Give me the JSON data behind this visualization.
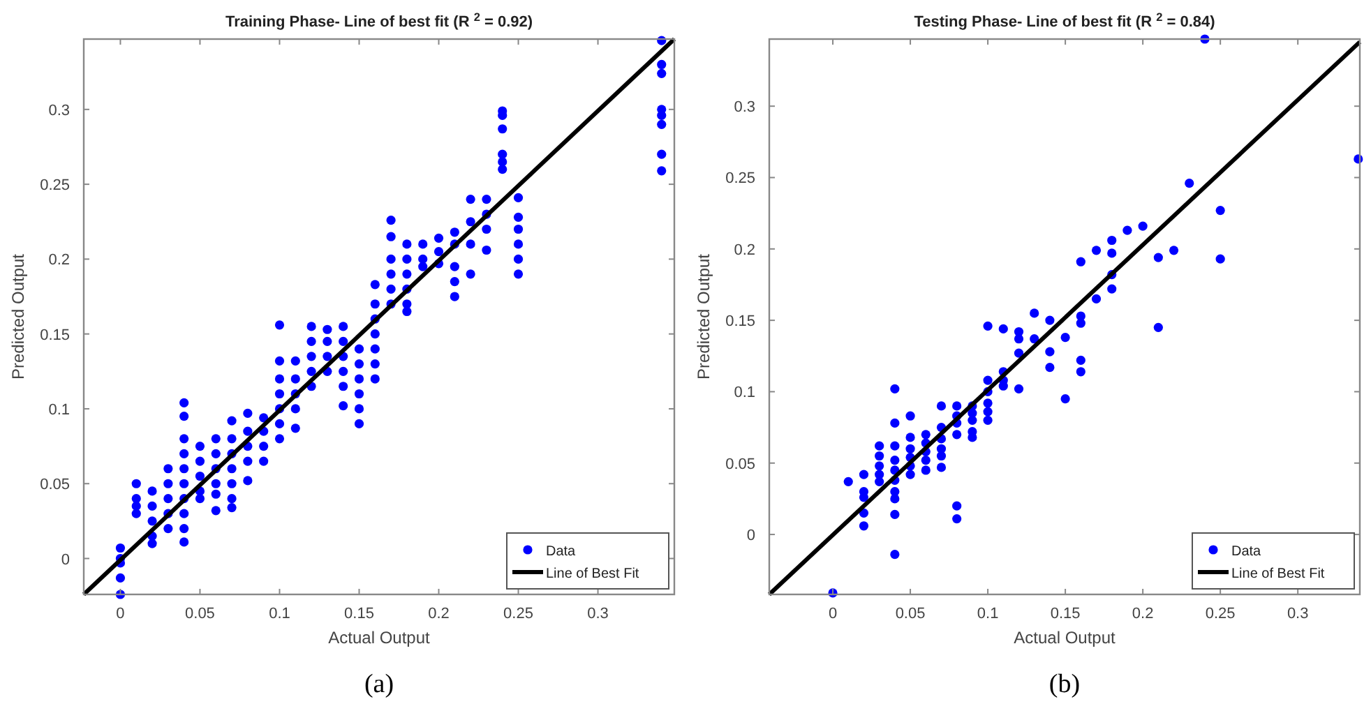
{
  "chart_data": [
    {
      "type": "scatter",
      "title": "Training Phase- Line of best fit (R $^{2}$ = 0.92)",
      "xlabel": "Actual Output",
      "ylabel": "Predicted Output",
      "annotations": [
        "(a)"
      ],
      "xlim": [
        -0.023,
        0.348
      ],
      "ylim": [
        -0.024,
        0.347
      ],
      "xticks": [
        0,
        0.05,
        0.1,
        0.15,
        0.2,
        0.25,
        0.3
      ],
      "yticks": [
        0,
        0.05,
        0.1,
        0.15,
        0.2,
        0.25,
        0.3
      ],
      "grid": false,
      "legend": "bottom right",
      "series": [
        {
          "name": "Data",
          "marker": "circle",
          "color": "#0000ff",
          "x": [
            0,
            0,
            0,
            0,
            0,
            0.01,
            0.01,
            0.01,
            0.01,
            0.02,
            0.02,
            0.02,
            0.02,
            0.02,
            0.03,
            0.03,
            0.03,
            0.03,
            0.03,
            0.04,
            0.04,
            0.04,
            0.04,
            0.04,
            0.04,
            0.04,
            0.04,
            0.04,
            0.04,
            0.05,
            0.05,
            0.05,
            0.05,
            0.05,
            0.06,
            0.06,
            0.06,
            0.06,
            0.06,
            0.06,
            0.07,
            0.07,
            0.07,
            0.07,
            0.07,
            0.07,
            0.07,
            0.08,
            0.08,
            0.08,
            0.08,
            0.08,
            0.09,
            0.09,
            0.09,
            0.09,
            0.1,
            0.1,
            0.1,
            0.1,
            0.1,
            0.1,
            0.1,
            0.11,
            0.11,
            0.11,
            0.11,
            0.11,
            0.12,
            0.12,
            0.12,
            0.12,
            0.12,
            0.13,
            0.13,
            0.13,
            0.13,
            0.14,
            0.14,
            0.14,
            0.14,
            0.14,
            0.14,
            0.15,
            0.15,
            0.15,
            0.15,
            0.15,
            0.15,
            0.16,
            0.16,
            0.16,
            0.16,
            0.16,
            0.16,
            0.16,
            0.17,
            0.17,
            0.17,
            0.17,
            0.17,
            0.17,
            0.18,
            0.18,
            0.18,
            0.18,
            0.18,
            0.18,
            0.19,
            0.19,
            0.19,
            0.2,
            0.2,
            0.2,
            0.21,
            0.21,
            0.21,
            0.21,
            0.21,
            0.22,
            0.22,
            0.22,
            0.22,
            0.23,
            0.23,
            0.23,
            0.23,
            0.24,
            0.24,
            0.24,
            0.24,
            0.24,
            0.24,
            0.25,
            0.25,
            0.25,
            0.25,
            0.25,
            0.25,
            0.34,
            0.34,
            0.34,
            0.34,
            0.34,
            0.34,
            0.34,
            0.34
          ],
          "values": [
            0.007,
            0,
            -0.003,
            -0.013,
            -0.024,
            0.05,
            0.04,
            0.035,
            0.03,
            0.045,
            0.035,
            0.025,
            0.015,
            0.01,
            0.06,
            0.05,
            0.04,
            0.03,
            0.02,
            0.104,
            0.095,
            0.08,
            0.07,
            0.06,
            0.05,
            0.04,
            0.03,
            0.02,
            0.011,
            0.075,
            0.065,
            0.055,
            0.045,
            0.04,
            0.08,
            0.07,
            0.06,
            0.05,
            0.043,
            0.032,
            0.092,
            0.08,
            0.07,
            0.06,
            0.05,
            0.04,
            0.034,
            0.097,
            0.085,
            0.075,
            0.065,
            0.052,
            0.094,
            0.085,
            0.075,
            0.065,
            0.156,
            0.132,
            0.12,
            0.11,
            0.1,
            0.09,
            0.08,
            0.132,
            0.12,
            0.11,
            0.1,
            0.087,
            0.155,
            0.145,
            0.135,
            0.125,
            0.115,
            0.153,
            0.145,
            0.135,
            0.125,
            0.155,
            0.145,
            0.135,
            0.125,
            0.115,
            0.102,
            0.14,
            0.13,
            0.12,
            0.11,
            0.1,
            0.09,
            0.183,
            0.17,
            0.16,
            0.15,
            0.14,
            0.13,
            0.12,
            0.226,
            0.215,
            0.2,
            0.19,
            0.18,
            0.17,
            0.21,
            0.2,
            0.19,
            0.18,
            0.17,
            0.165,
            0.21,
            0.2,
            0.195,
            0.214,
            0.205,
            0.197,
            0.218,
            0.21,
            0.195,
            0.185,
            0.175,
            0.24,
            0.225,
            0.21,
            0.19,
            0.24,
            0.23,
            0.22,
            0.206,
            0.299,
            0.296,
            0.287,
            0.27,
            0.265,
            0.26,
            0.241,
            0.228,
            0.22,
            0.21,
            0.2,
            0.19,
            0.346,
            0.33,
            0.324,
            0.3,
            0.296,
            0.29,
            0.27,
            0.259
          ]
        },
        {
          "name": "Line of Best Fit",
          "type": "line",
          "marker": "none",
          "color": "#000000",
          "x": [
            -0.023,
            0.348
          ],
          "values": [
            -0.024,
            0.347
          ]
        }
      ]
    },
    {
      "type": "scatter",
      "title": "Testing Phase- Line of best fit (R $^{2}$ = 0.84)",
      "xlabel": "Actual Output",
      "ylabel": "Predicted Output",
      "annotations": [
        "(b)"
      ],
      "xlim": [
        -0.041,
        0.34
      ],
      "ylim": [
        -0.042,
        0.347
      ],
      "xticks": [
        0,
        0.05,
        0.1,
        0.15,
        0.2,
        0.25,
        0.3
      ],
      "yticks": [
        0,
        0.05,
        0.1,
        0.15,
        0.2,
        0.25,
        0.3
      ],
      "grid": false,
      "legend": "bottom right",
      "series": [
        {
          "name": "Data",
          "marker": "circle",
          "color": "#0000ff",
          "x": [
            0.24,
            0.339,
            0.23,
            0.25,
            0.25,
            0.2,
            0.19,
            0.18,
            0.18,
            0.17,
            0.16,
            0.21,
            0.22,
            0.18,
            0.18,
            0.17,
            0.16,
            0.16,
            0.21,
            0.13,
            0.14,
            0.1,
            0.11,
            0.12,
            0.12,
            0.13,
            0.15,
            0.12,
            0.14,
            0.14,
            0.16,
            0.16,
            0.12,
            0.15,
            0.1,
            0.1,
            0.1,
            0.1,
            0.1,
            0.11,
            0.11,
            0.11,
            0.09,
            0.09,
            0.09,
            0.09,
            0.09,
            0.08,
            0.08,
            0.08,
            0.08,
            0.08,
            0.08,
            0.07,
            0.07,
            0.07,
            0.07,
            0.07,
            0.07,
            0.06,
            0.06,
            0.06,
            0.06,
            0.06,
            0.05,
            0.05,
            0.05,
            0.05,
            0.05,
            0.05,
            0.04,
            0.04,
            0.04,
            0.04,
            0.04,
            0.04,
            0.04,
            0.04,
            0.04,
            0.04,
            0.03,
            0.03,
            0.03,
            0.03,
            0.03,
            0.02,
            0.02,
            0.02,
            0.02,
            0.02,
            0.01,
            0
          ],
          "values": [
            0.347,
            0.263,
            0.246,
            0.227,
            0.193,
            0.216,
            0.213,
            0.206,
            0.197,
            0.199,
            0.191,
            0.194,
            0.199,
            0.182,
            0.172,
            0.165,
            0.153,
            0.148,
            0.145,
            0.155,
            0.15,
            0.146,
            0.144,
            0.142,
            0.137,
            0.137,
            0.138,
            0.127,
            0.128,
            0.117,
            0.122,
            0.114,
            0.102,
            0.095,
            0.108,
            0.1,
            0.092,
            0.086,
            0.08,
            0.114,
            0.108,
            0.104,
            0.09,
            0.085,
            0.08,
            0.072,
            0.068,
            0.09,
            0.083,
            0.078,
            0.07,
            0.02,
            0.011,
            0.09,
            0.075,
            0.067,
            0.06,
            0.055,
            0.047,
            0.07,
            0.064,
            0.058,
            0.052,
            0.045,
            0.083,
            0.068,
            0.06,
            0.054,
            0.048,
            0.042,
            0.102,
            0.078,
            0.062,
            0.052,
            0.045,
            0.038,
            0.03,
            0.025,
            0.014,
            -0.014,
            0.062,
            0.055,
            0.048,
            0.042,
            0.037,
            0.042,
            0.03,
            0.026,
            0.015,
            0.006,
            0.037,
            -0.041
          ]
        },
        {
          "name": "Line of Best Fit",
          "type": "line",
          "marker": "none",
          "color": "#000000",
          "x": [
            -0.041,
            0.34
          ],
          "values": [
            -0.042,
            0.345
          ]
        }
      ]
    }
  ]
}
